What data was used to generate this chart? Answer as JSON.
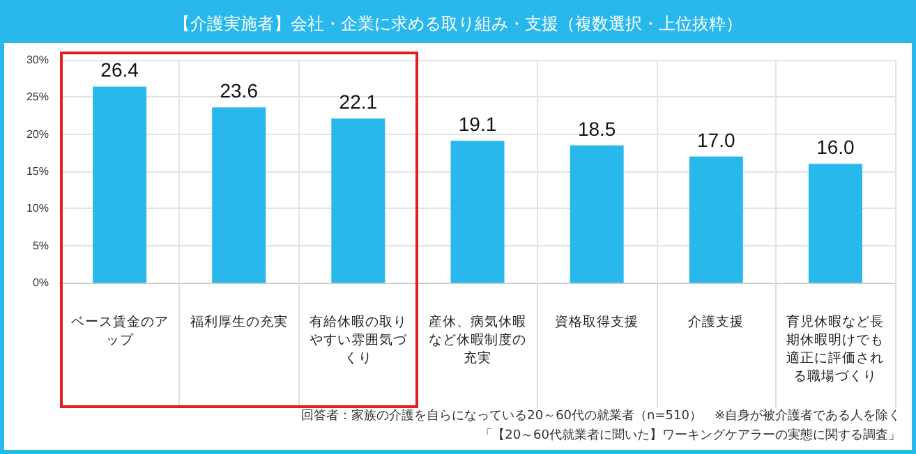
{
  "chart_data": {
    "type": "bar",
    "title": "【介護実施者】会社・企業に求める取り組み・支援（複数選択・上位抜粋）",
    "categories": [
      "ベース賃金のアップ",
      "福利厚生の充実",
      "有給休暇の取りやすい雰囲気づくり",
      "産休、病気休暇など休暇制度の充実",
      "資格取得支援",
      "介護支援",
      "育児休暇など長期休暇明けでも適正に評価される職場づくり"
    ],
    "values": [
      26.4,
      23.6,
      22.1,
      19.1,
      18.5,
      17.0,
      16.0
    ],
    "value_labels": [
      "26.4",
      "23.6",
      "22.1",
      "19.1",
      "18.5",
      "17.0",
      "16.0"
    ],
    "color": "#29b8ec",
    "ylim": [
      0,
      30
    ],
    "yticks": [
      {
        "value": 0,
        "label": "0%"
      },
      {
        "value": 5,
        "label": "5%"
      },
      {
        "value": 10,
        "label": "10%"
      },
      {
        "value": 15,
        "label": "15%"
      },
      {
        "value": 20,
        "label": "20%"
      },
      {
        "value": 25,
        "label": "25%"
      },
      {
        "value": 30,
        "label": "30%"
      }
    ],
    "grid": true,
    "annotations": [
      "回答者：家族の介護を自らになっている20～60代の就業者（n=510）　※自身が被介護者である人を除く",
      "「【20～60代就業者に聞いた】ワーキングケアラーの実態に関する調査」"
    ]
  }
}
